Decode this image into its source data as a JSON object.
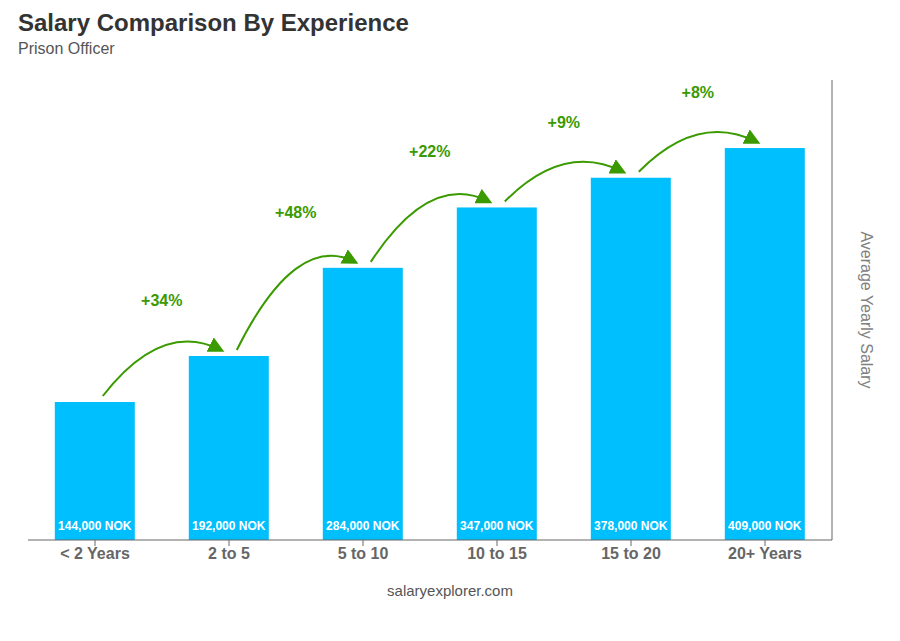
{
  "chart_data": {
    "type": "bar",
    "title": "Salary Comparison By Experience",
    "subtitle": "Prison Officer",
    "categories": [
      "< 2 Years",
      "2 to 5",
      "5 to 10",
      "10 to 15",
      "15 to 20",
      "20+ Years"
    ],
    "values": [
      144000,
      192000,
      284000,
      347000,
      378000,
      409000
    ],
    "value_labels": [
      "144,000 NOK",
      "192,000 NOK",
      "284,000 NOK",
      "347,000 NOK",
      "378,000 NOK",
      "409,000 NOK"
    ],
    "data_labels": true,
    "annotations": [
      "+34%",
      "+48%",
      "+22%",
      "+9%",
      "+8%"
    ],
    "ylabel": "Average Yearly Salary",
    "footer": "salaryexplorer.com",
    "color": "#00BFFF",
    "ylim": [
      0,
      480000
    ],
    "tick_labels": "x",
    "grid": false
  }
}
